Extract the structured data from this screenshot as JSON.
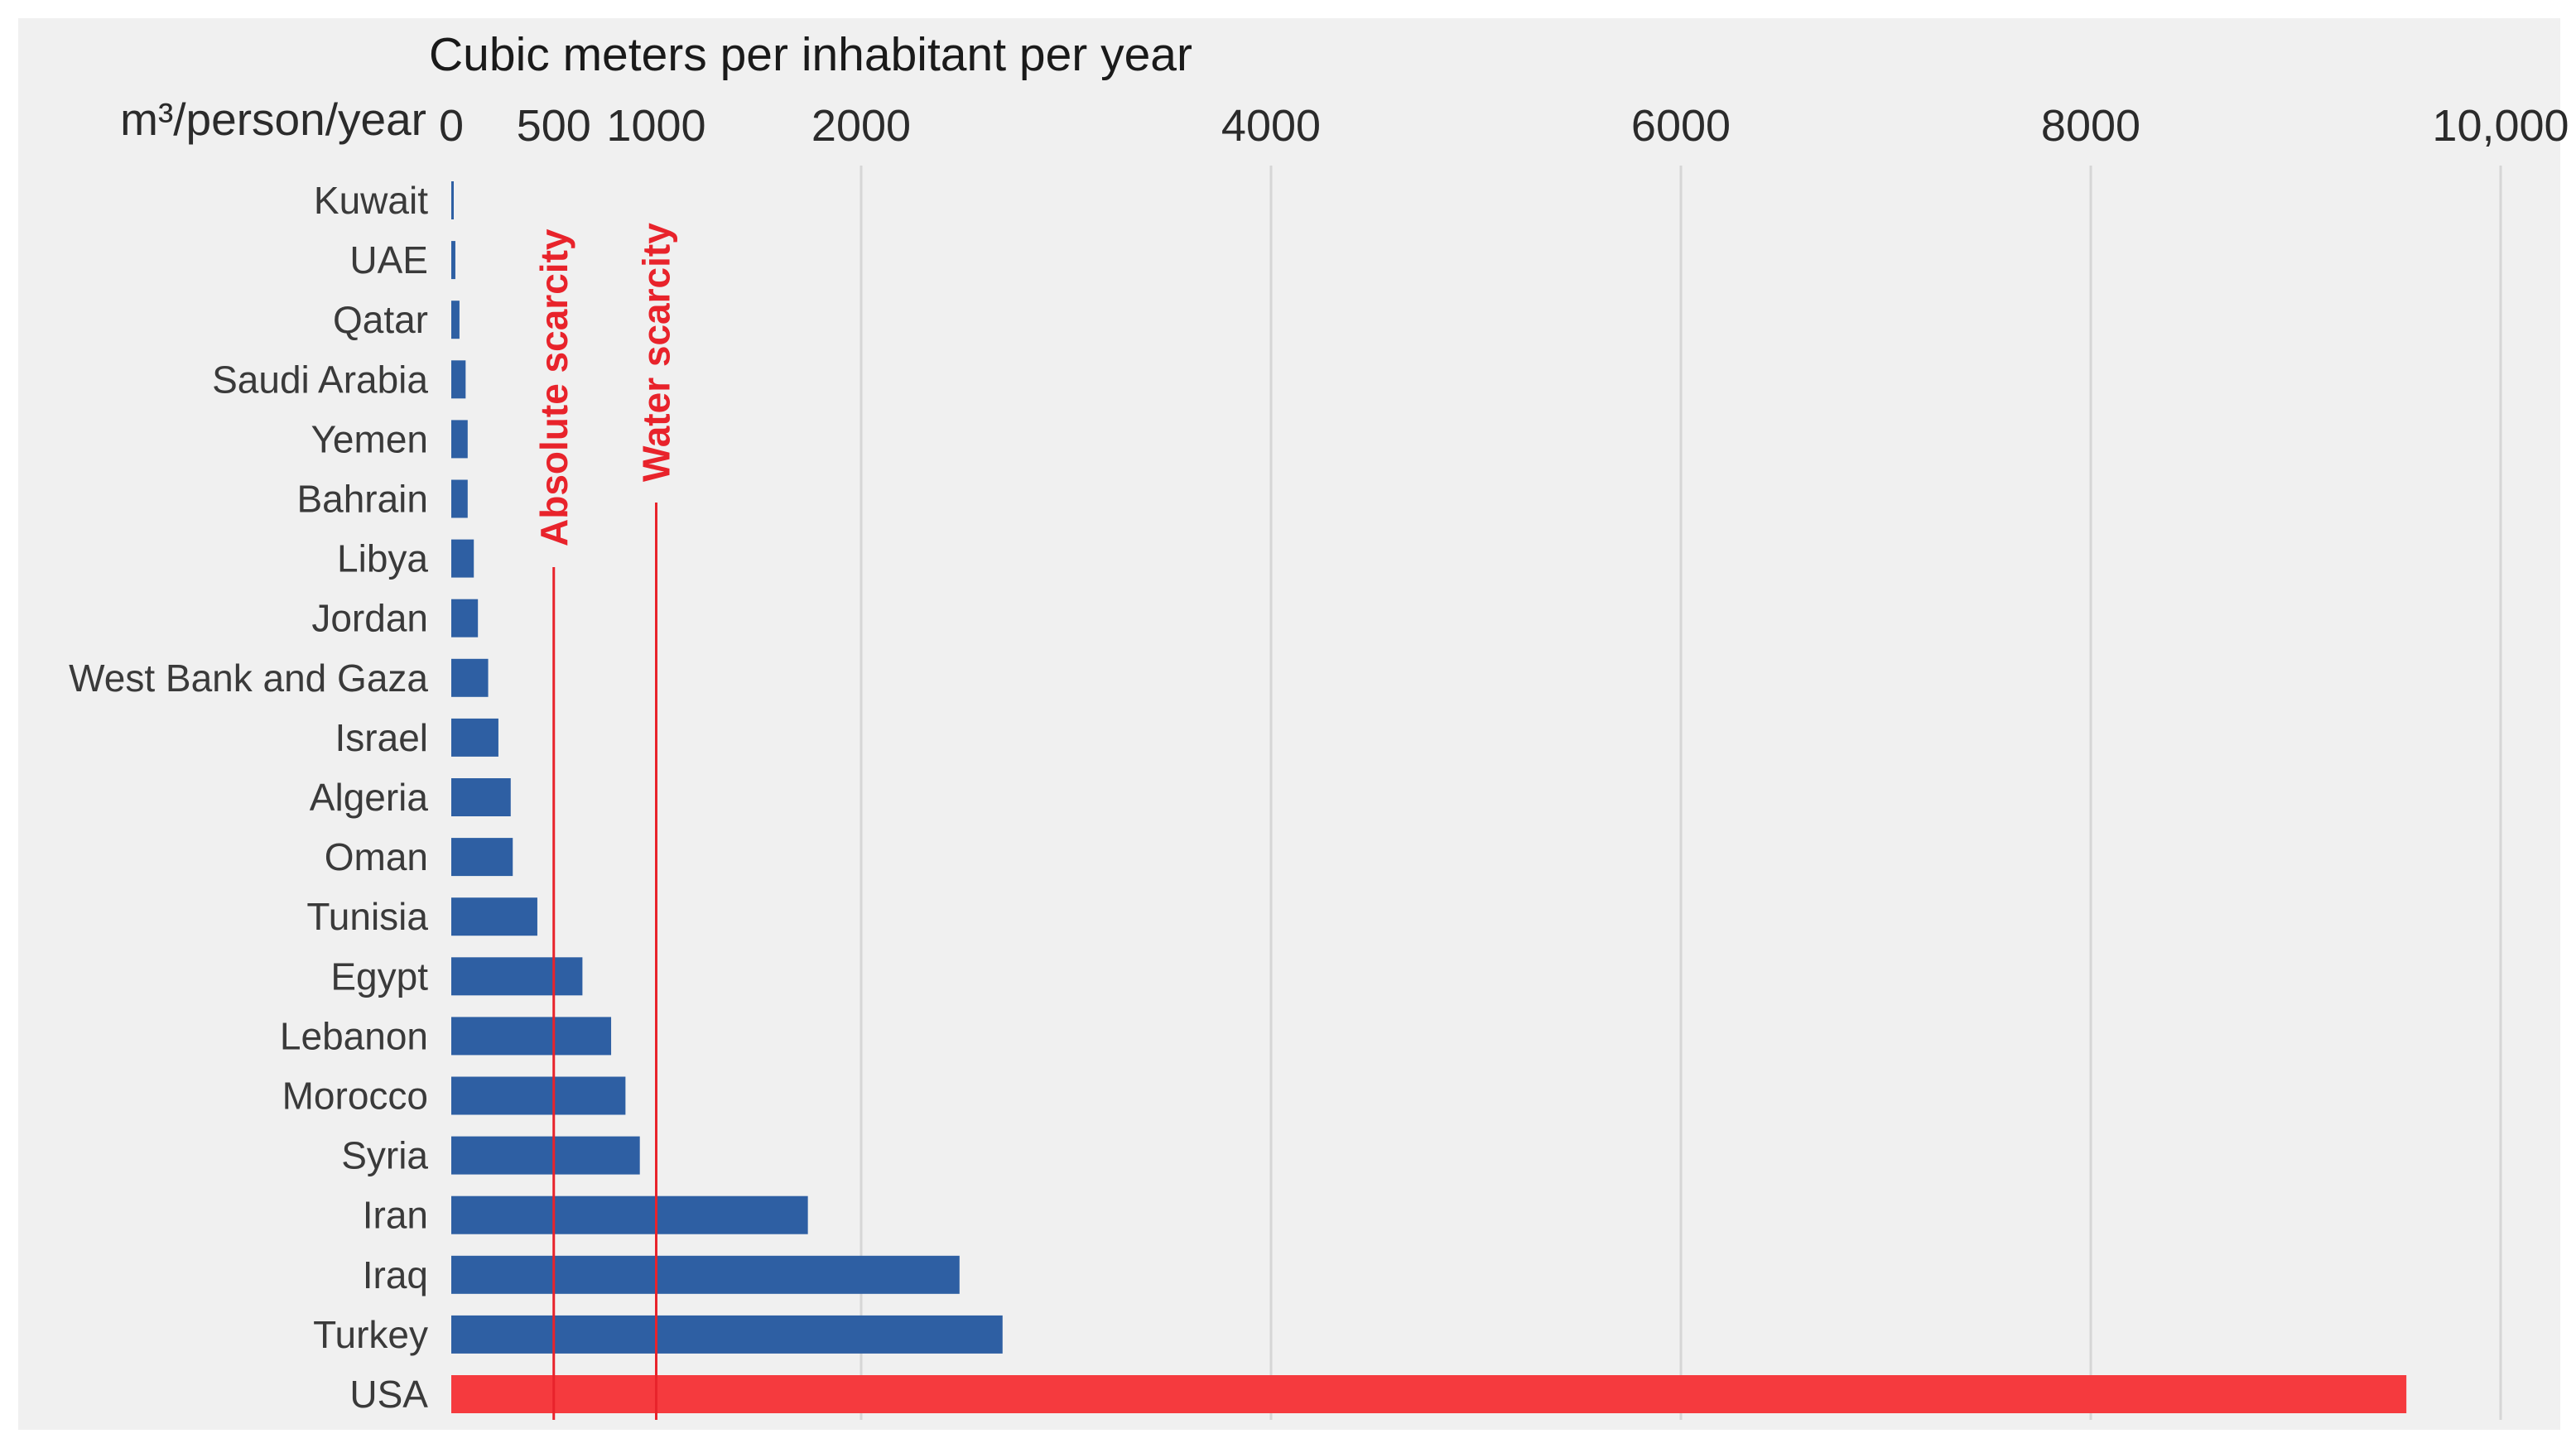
{
  "chart_data": {
    "type": "bar",
    "orientation": "horizontal",
    "title": "Cubic meters per inhabitant per year",
    "unit_label": "m³/person/year",
    "xlim": [
      0,
      10000
    ],
    "x_ticks": [
      {
        "value": 0,
        "label": "0"
      },
      {
        "value": 500,
        "label": "500"
      },
      {
        "value": 1000,
        "label": "1000"
      },
      {
        "value": 2000,
        "label": "2000"
      },
      {
        "value": 4000,
        "label": "4000"
      },
      {
        "value": 6000,
        "label": "6000"
      },
      {
        "value": 8000,
        "label": "8000"
      },
      {
        "value": 10000,
        "label": "10,000"
      }
    ],
    "gridlines": [
      2000,
      4000,
      6000,
      8000,
      10000
    ],
    "grid": true,
    "categories": [
      "Kuwait",
      "UAE",
      "Qatar",
      "Saudi Arabia",
      "Yemen",
      "Bahrain",
      "Libya",
      "Jordan",
      "West Bank and Gaza",
      "Israel",
      "Algeria",
      "Oman",
      "Tunisia",
      "Egypt",
      "Lebanon",
      "Morocco",
      "Syria",
      "Iran",
      "Iraq",
      "Turkey",
      "USA"
    ],
    "values": [
      10,
      20,
      40,
      70,
      80,
      80,
      110,
      130,
      180,
      230,
      290,
      300,
      420,
      640,
      780,
      850,
      920,
      1740,
      2480,
      2690,
      9540
    ],
    "bar_colors": [
      "#2e5fa3",
      "#2e5fa3",
      "#2e5fa3",
      "#2e5fa3",
      "#2e5fa3",
      "#2e5fa3",
      "#2e5fa3",
      "#2e5fa3",
      "#2e5fa3",
      "#2e5fa3",
      "#2e5fa3",
      "#2e5fa3",
      "#2e5fa3",
      "#2e5fa3",
      "#2e5fa3",
      "#2e5fa3",
      "#2e5fa3",
      "#2e5fa3",
      "#2e5fa3",
      "#2e5fa3",
      "#f53a3e"
    ],
    "reference_lines": [
      {
        "value": 500,
        "label": "Absolute scarcity",
        "color": "#e8232b"
      },
      {
        "value": 1000,
        "label": "Water scarcity",
        "color": "#e8232b"
      }
    ]
  }
}
